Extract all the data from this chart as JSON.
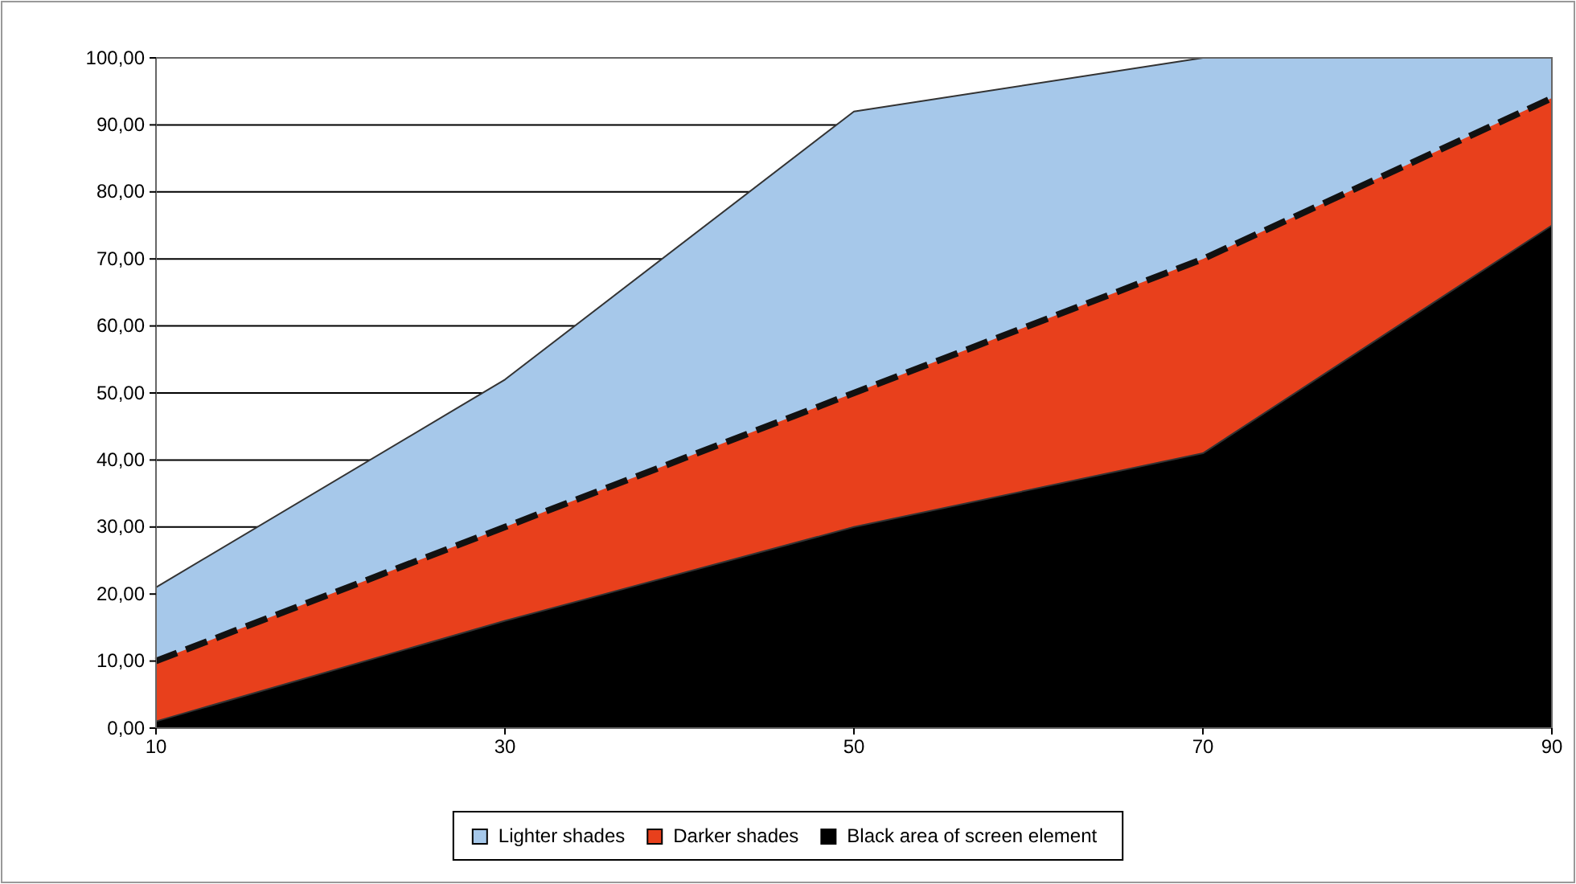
{
  "chart_data": {
    "type": "area",
    "x": [
      10,
      30,
      50,
      70,
      90
    ],
    "series": [
      {
        "name": "Lighter shades",
        "color": "#a6c8ea",
        "values": [
          21,
          52,
          92,
          100,
          100
        ]
      },
      {
        "name": "Darker shades",
        "color": "#e8401c",
        "values": [
          10,
          30,
          50,
          70,
          94
        ],
        "line_style": "dashed"
      },
      {
        "name": "Black area of screen element",
        "color": "#000000",
        "values": [
          1,
          16,
          30,
          41,
          75
        ]
      }
    ],
    "xlim": [
      10,
      90
    ],
    "xticks": [
      10,
      30,
      50,
      70,
      90
    ],
    "ylim": [
      0,
      100
    ],
    "yticks": [
      {
        "value": 0,
        "label": "0,00"
      },
      {
        "value": 10,
        "label": "10,00"
      },
      {
        "value": 20,
        "label": "20,00"
      },
      {
        "value": 30,
        "label": "30,00"
      },
      {
        "value": 40,
        "label": "40,00"
      },
      {
        "value": 50,
        "label": "50,00"
      },
      {
        "value": 60,
        "label": "60,00"
      },
      {
        "value": 70,
        "label": "70,00"
      },
      {
        "value": 80,
        "label": "80,00"
      },
      {
        "value": 90,
        "label": "90,00"
      },
      {
        "value": 100,
        "label": "100,00"
      }
    ],
    "grid": "y",
    "legend": "bottom"
  }
}
